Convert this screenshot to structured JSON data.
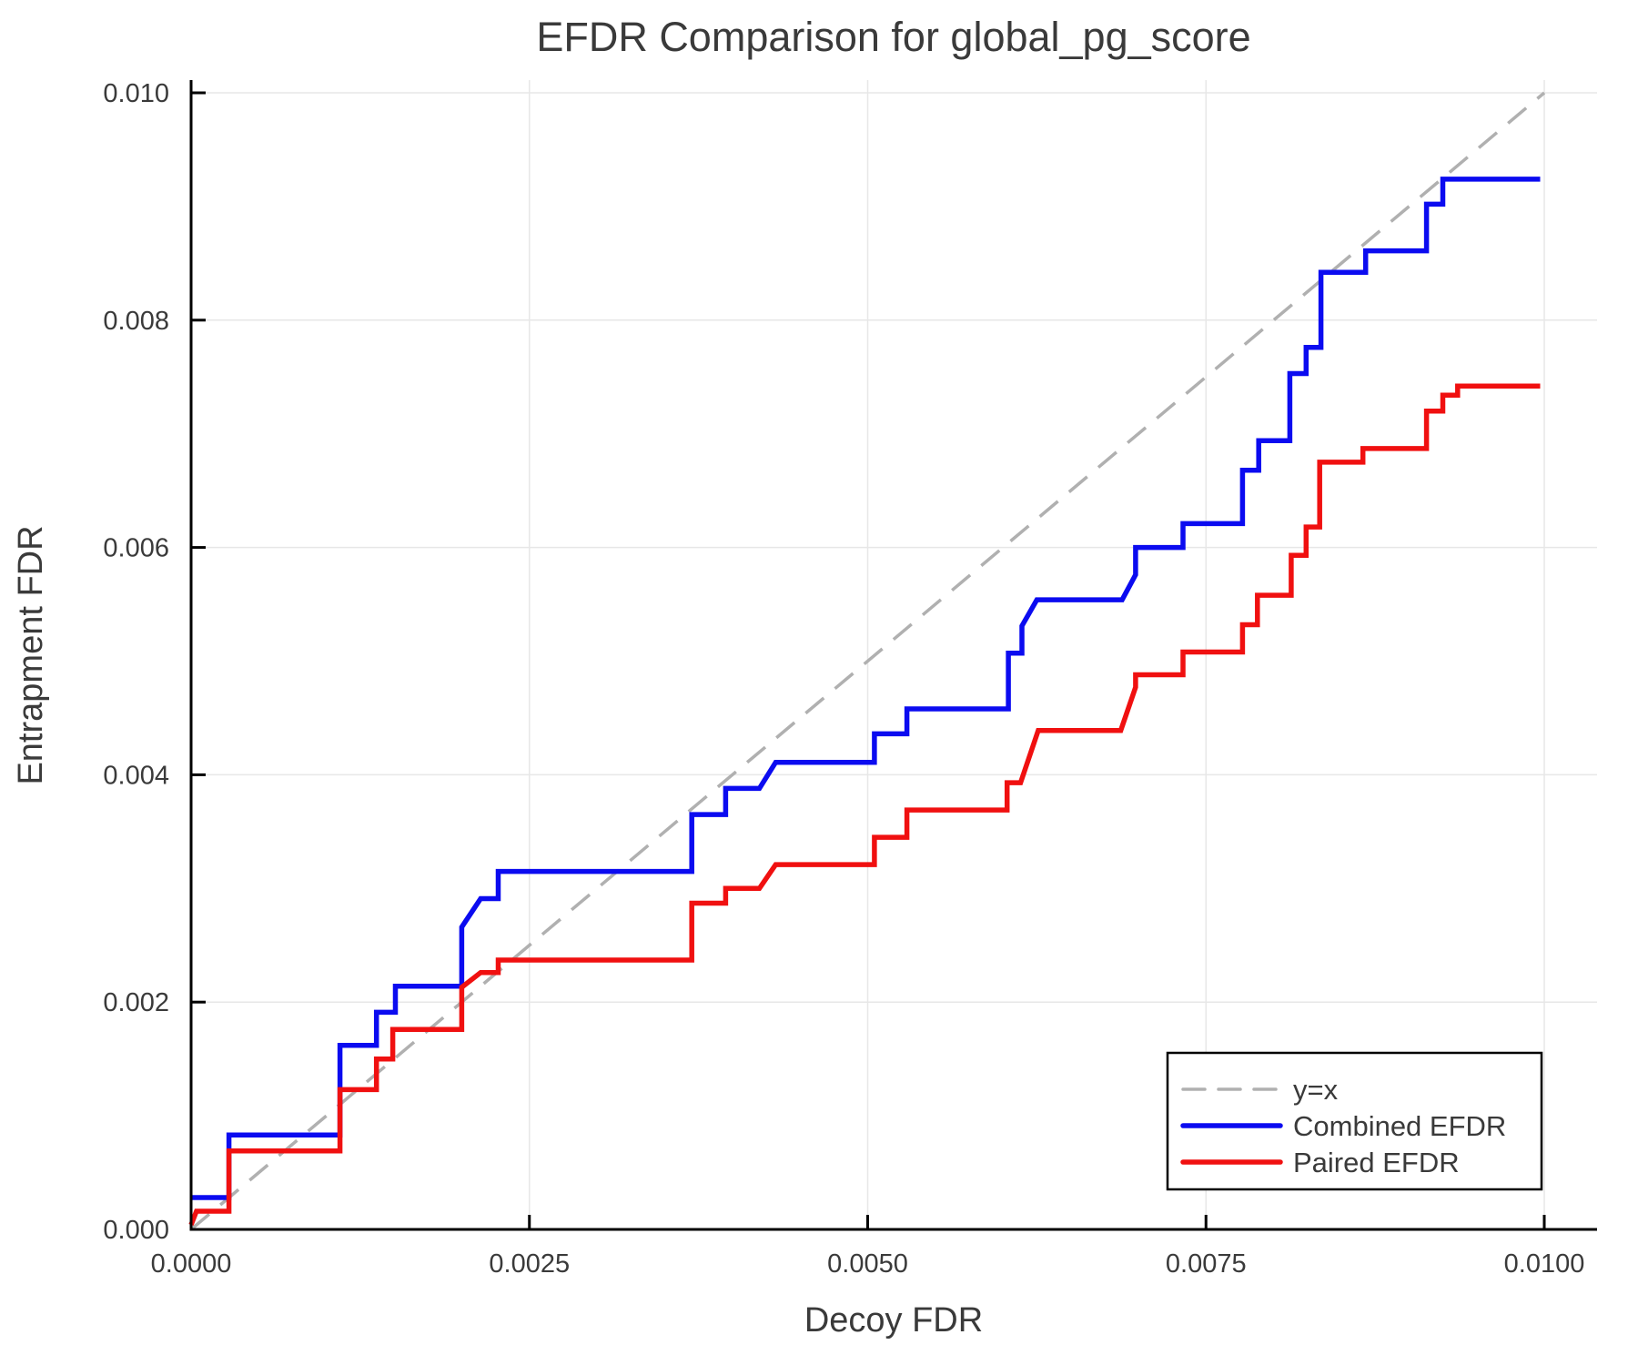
{
  "chart_data": {
    "type": "line",
    "title": "EFDR Comparison for global_pg_score",
    "xlabel": "Decoy FDR",
    "ylabel": "Entrapment FDR",
    "xlim": [
      0,
      0.0105
    ],
    "ylim": [
      0,
      0.0101
    ],
    "grid": true,
    "legend_position": "lower right",
    "xticks": [
      0.0,
      0.0025,
      0.005,
      0.0075,
      0.01
    ],
    "xtick_labels": [
      "0.0000",
      "0.0025",
      "0.0050",
      "0.0075",
      "0.0100"
    ],
    "yticks": [
      0.0,
      0.002,
      0.004,
      0.006,
      0.008,
      0.01
    ],
    "ytick_labels": [
      "0.000",
      "0.002",
      "0.004",
      "0.006",
      "0.008",
      "0.010"
    ],
    "colors": {
      "identity": "#b0b0b0",
      "combined": "#0b0bf0",
      "paired": "#f01010",
      "grid": "#e7e7e7",
      "spine": "#000000",
      "text": "#3a3a3a"
    },
    "series": [
      {
        "name": "y=x",
        "style": "dashed",
        "color_key": "identity",
        "points": [
          [
            0,
            0
          ],
          [
            0.01,
            0.01
          ]
        ]
      },
      {
        "name": "Combined EFDR",
        "style": "solid",
        "color_key": "combined",
        "points": [
          [
            0.0,
            0.00028
          ],
          [
            0.00028,
            0.00028
          ],
          [
            0.00028,
            0.00083
          ],
          [
            0.0011,
            0.00083
          ],
          [
            0.0011,
            0.00162
          ],
          [
            0.00137,
            0.00162
          ],
          [
            0.00137,
            0.00191
          ],
          [
            0.00151,
            0.00191
          ],
          [
            0.00151,
            0.00214
          ],
          [
            0.002,
            0.00214
          ],
          [
            0.002,
            0.00266
          ],
          [
            0.00214,
            0.00291
          ],
          [
            0.00227,
            0.00291
          ],
          [
            0.00227,
            0.00315
          ],
          [
            0.0037,
            0.00315
          ],
          [
            0.0037,
            0.00365
          ],
          [
            0.00395,
            0.00365
          ],
          [
            0.00395,
            0.00388
          ],
          [
            0.0042,
            0.00388
          ],
          [
            0.00432,
            0.00411
          ],
          [
            0.00505,
            0.00411
          ],
          [
            0.00505,
            0.00436
          ],
          [
            0.00529,
            0.00436
          ],
          [
            0.00529,
            0.00458
          ],
          [
            0.00604,
            0.00458
          ],
          [
            0.00604,
            0.00507
          ],
          [
            0.00614,
            0.00507
          ],
          [
            0.00614,
            0.00531
          ],
          [
            0.00625,
            0.00554
          ],
          [
            0.00688,
            0.00554
          ],
          [
            0.00698,
            0.00576
          ],
          [
            0.00698,
            0.006
          ],
          [
            0.00733,
            0.006
          ],
          [
            0.00733,
            0.00621
          ],
          [
            0.00777,
            0.00621
          ],
          [
            0.00777,
            0.00668
          ],
          [
            0.00789,
            0.00668
          ],
          [
            0.00789,
            0.00694
          ],
          [
            0.00812,
            0.00694
          ],
          [
            0.00812,
            0.00753
          ],
          [
            0.00824,
            0.00753
          ],
          [
            0.00824,
            0.00776
          ],
          [
            0.00835,
            0.00776
          ],
          [
            0.00835,
            0.00842
          ],
          [
            0.00868,
            0.00842
          ],
          [
            0.00868,
            0.00861
          ],
          [
            0.00913,
            0.00861
          ],
          [
            0.00913,
            0.00902
          ],
          [
            0.00925,
            0.00902
          ],
          [
            0.00925,
            0.00924
          ],
          [
            0.00997,
            0.00924
          ]
        ]
      },
      {
        "name": "Paired EFDR",
        "style": "solid",
        "color_key": "paired",
        "points": [
          [
            0.0,
            4e-05
          ],
          [
            4e-05,
            0.00016
          ],
          [
            0.00028,
            0.00016
          ],
          [
            0.00028,
            0.00069
          ],
          [
            0.0011,
            0.00069
          ],
          [
            0.0011,
            0.00123
          ],
          [
            0.00137,
            0.00123
          ],
          [
            0.00137,
            0.0015
          ],
          [
            0.00149,
            0.0015
          ],
          [
            0.00149,
            0.00176
          ],
          [
            0.002,
            0.00176
          ],
          [
            0.002,
            0.00213
          ],
          [
            0.00214,
            0.00226
          ],
          [
            0.00227,
            0.00226
          ],
          [
            0.00227,
            0.00237
          ],
          [
            0.0037,
            0.00237
          ],
          [
            0.0037,
            0.00287
          ],
          [
            0.00395,
            0.00287
          ],
          [
            0.00395,
            0.003
          ],
          [
            0.0042,
            0.003
          ],
          [
            0.00432,
            0.00321
          ],
          [
            0.00505,
            0.00321
          ],
          [
            0.00505,
            0.00345
          ],
          [
            0.00529,
            0.00345
          ],
          [
            0.00529,
            0.00369
          ],
          [
            0.00603,
            0.00369
          ],
          [
            0.00603,
            0.00393
          ],
          [
            0.00613,
            0.00393
          ],
          [
            0.00626,
            0.00439
          ],
          [
            0.00687,
            0.00439
          ],
          [
            0.00698,
            0.00477
          ],
          [
            0.00698,
            0.00488
          ],
          [
            0.00733,
            0.00488
          ],
          [
            0.00733,
            0.00508
          ],
          [
            0.00777,
            0.00508
          ],
          [
            0.00777,
            0.00532
          ],
          [
            0.00788,
            0.00532
          ],
          [
            0.00788,
            0.00558
          ],
          [
            0.00813,
            0.00558
          ],
          [
            0.00813,
            0.00593
          ],
          [
            0.00824,
            0.00593
          ],
          [
            0.00824,
            0.00618
          ],
          [
            0.00834,
            0.00618
          ],
          [
            0.00834,
            0.00675
          ],
          [
            0.00866,
            0.00675
          ],
          [
            0.00866,
            0.00687
          ],
          [
            0.00913,
            0.00687
          ],
          [
            0.00913,
            0.0072
          ],
          [
            0.00925,
            0.0072
          ],
          [
            0.00925,
            0.00734
          ],
          [
            0.00936,
            0.00734
          ],
          [
            0.00936,
            0.00742
          ],
          [
            0.00997,
            0.00742
          ]
        ]
      }
    ],
    "legend_entries": [
      "y=x",
      "Combined EFDR",
      "Paired EFDR"
    ]
  }
}
